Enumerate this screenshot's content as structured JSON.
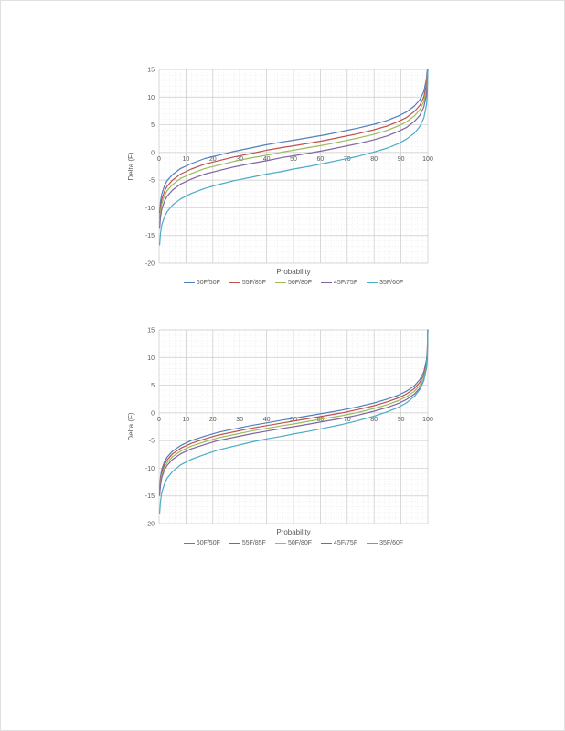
{
  "page": {
    "background": "#FFFFFF",
    "border_color": "#E0E0E0",
    "text_color": "#595959"
  },
  "chart_data": [
    {
      "type": "line",
      "title": "",
      "xlabel": "Probability",
      "ylabel": "Delta (F)",
      "xlim": [
        0,
        100
      ],
      "ylim": [
        -20,
        15
      ],
      "xticks": [
        0,
        10,
        20,
        30,
        40,
        50,
        60,
        70,
        80,
        90,
        100
      ],
      "yticks": [
        15,
        10,
        5,
        0,
        -5,
        -10,
        -15,
        -20
      ],
      "grid": {
        "major": true,
        "minor": true,
        "major_color": "#C9C9C9",
        "minor_color": "#E2E2E2"
      },
      "legend_position": "bottom",
      "x": [
        0.2,
        0.5,
        1,
        2,
        3,
        5,
        8,
        12,
        17,
        22,
        28,
        34,
        40,
        46,
        50,
        56,
        62,
        68,
        74,
        80,
        85,
        89,
        92,
        95,
        97,
        98.5,
        99.5,
        99.8,
        100
      ],
      "series": [
        {
          "name": "60F/50F",
          "color": "#4F81BD",
          "values": [
            -10.9,
            -8.9,
            -7.5,
            -6.0,
            -5.1,
            -4.0,
            -2.9,
            -2.0,
            -1.1,
            -0.5,
            0.2,
            0.8,
            1.4,
            1.9,
            2.2,
            2.7,
            3.2,
            3.8,
            4.4,
            5.1,
            5.8,
            6.6,
            7.3,
            8.4,
            9.5,
            11.0,
            13.3,
            15.0,
            15.0
          ]
        },
        {
          "name": "55F/85F",
          "color": "#C0504D",
          "values": [
            -11.9,
            -9.9,
            -8.5,
            -7.0,
            -6.1,
            -5.0,
            -3.9,
            -3.0,
            -2.1,
            -1.5,
            -0.8,
            -0.2,
            0.4,
            0.9,
            1.2,
            1.7,
            2.2,
            2.8,
            3.4,
            4.1,
            4.8,
            5.6,
            6.3,
            7.4,
            8.5,
            10.0,
            12.3,
            14.3,
            15.0
          ]
        },
        {
          "name": "50F/80F",
          "color": "#9BBB59",
          "values": [
            -12.7,
            -10.7,
            -9.3,
            -7.8,
            -6.9,
            -5.8,
            -4.7,
            -3.8,
            -2.9,
            -2.3,
            -1.6,
            -1.0,
            -0.5,
            0.1,
            0.4,
            0.9,
            1.4,
            2.0,
            2.6,
            3.3,
            4.0,
            4.8,
            5.5,
            6.6,
            7.7,
            9.2,
            11.5,
            13.5,
            15.0
          ]
        },
        {
          "name": "45F/75F",
          "color": "#8064A2",
          "values": [
            -13.7,
            -11.7,
            -10.3,
            -8.8,
            -7.9,
            -6.8,
            -5.7,
            -4.8,
            -3.9,
            -3.3,
            -2.6,
            -2.0,
            -1.5,
            -0.9,
            -0.6,
            -0.1,
            0.4,
            1.0,
            1.6,
            2.3,
            3.0,
            3.8,
            4.5,
            5.6,
            6.7,
            8.2,
            10.5,
            12.5,
            15.0
          ]
        },
        {
          "name": "35F/60F",
          "color": "#4BACC6",
          "values": [
            -16.7,
            -14.6,
            -13.1,
            -11.6,
            -10.7,
            -9.5,
            -8.4,
            -7.4,
            -6.5,
            -5.8,
            -5.1,
            -4.5,
            -3.9,
            -3.4,
            -3.0,
            -2.5,
            -1.9,
            -1.3,
            -0.7,
            0.1,
            0.8,
            1.6,
            2.4,
            3.5,
            4.7,
            6.2,
            8.6,
            10.7,
            15.0
          ]
        }
      ]
    },
    {
      "type": "line",
      "title": "",
      "xlabel": "Probability",
      "ylabel": "Delta (F)",
      "xlim": [
        0,
        100
      ],
      "ylim": [
        -20,
        15
      ],
      "xticks": [
        0,
        10,
        20,
        30,
        40,
        50,
        60,
        70,
        80,
        90,
        100
      ],
      "yticks": [
        15,
        10,
        5,
        0,
        -5,
        -10,
        -15,
        -20
      ],
      "grid": {
        "major": true,
        "minor": true,
        "major_color": "#C9C9C9",
        "minor_color": "#E2E2E2"
      },
      "legend_position": "bottom",
      "x": [
        0.2,
        0.5,
        1,
        2,
        3,
        5,
        8,
        12,
        17,
        22,
        28,
        34,
        40,
        46,
        50,
        56,
        62,
        68,
        74,
        80,
        85,
        89,
        92,
        95,
        97,
        98.5,
        99.5,
        99.8,
        100
      ],
      "series": [
        {
          "name": "60F/50F",
          "color": "#4F81BD",
          "values": [
            -13.4,
            -11.6,
            -10.2,
            -8.8,
            -8.0,
            -6.9,
            -5.9,
            -5.0,
            -4.2,
            -3.5,
            -2.9,
            -2.3,
            -1.8,
            -1.3,
            -1.0,
            -0.5,
            0.0,
            0.5,
            1.1,
            1.8,
            2.5,
            3.2,
            3.9,
            4.9,
            6.0,
            7.4,
            9.6,
            11.4,
            15.0
          ]
        },
        {
          "name": "55F/85F",
          "color": "#C0504D",
          "values": [
            -13.9,
            -12.1,
            -10.7,
            -9.3,
            -8.5,
            -7.4,
            -6.4,
            -5.5,
            -4.7,
            -4.0,
            -3.4,
            -2.8,
            -2.3,
            -1.8,
            -1.5,
            -1.0,
            -0.5,
            0.0,
            0.6,
            1.3,
            2.0,
            2.7,
            3.4,
            4.4,
            5.5,
            6.9,
            9.1,
            10.9,
            15.0
          ]
        },
        {
          "name": "50F/80F",
          "color": "#9BBB59",
          "values": [
            -14.4,
            -12.6,
            -11.2,
            -9.8,
            -9.0,
            -7.9,
            -6.9,
            -6.0,
            -5.2,
            -4.5,
            -3.9,
            -3.3,
            -2.8,
            -2.3,
            -2.0,
            -1.5,
            -1.0,
            -0.5,
            0.1,
            0.8,
            1.5,
            2.2,
            2.9,
            3.9,
            5.0,
            6.4,
            8.6,
            10.4,
            15.0
          ]
        },
        {
          "name": "45F/75F",
          "color": "#8064A2",
          "values": [
            -14.9,
            -13.1,
            -11.7,
            -10.3,
            -9.5,
            -8.4,
            -7.4,
            -6.5,
            -5.7,
            -5.0,
            -4.4,
            -3.8,
            -3.3,
            -2.8,
            -2.5,
            -2.0,
            -1.5,
            -1.0,
            -0.4,
            0.3,
            1.0,
            1.7,
            2.4,
            3.4,
            4.5,
            5.9,
            8.1,
            9.9,
            15.0
          ]
        },
        {
          "name": "35F/60F",
          "color": "#4BACC6",
          "values": [
            -18.1,
            -16.0,
            -14.4,
            -12.8,
            -11.8,
            -10.6,
            -9.4,
            -8.4,
            -7.5,
            -6.7,
            -6.0,
            -5.3,
            -4.7,
            -4.2,
            -3.8,
            -3.3,
            -2.7,
            -2.1,
            -1.4,
            -0.6,
            0.2,
            1.0,
            1.8,
            3.0,
            4.2,
            5.8,
            8.4,
            10.5,
            15.0
          ]
        }
      ]
    }
  ]
}
